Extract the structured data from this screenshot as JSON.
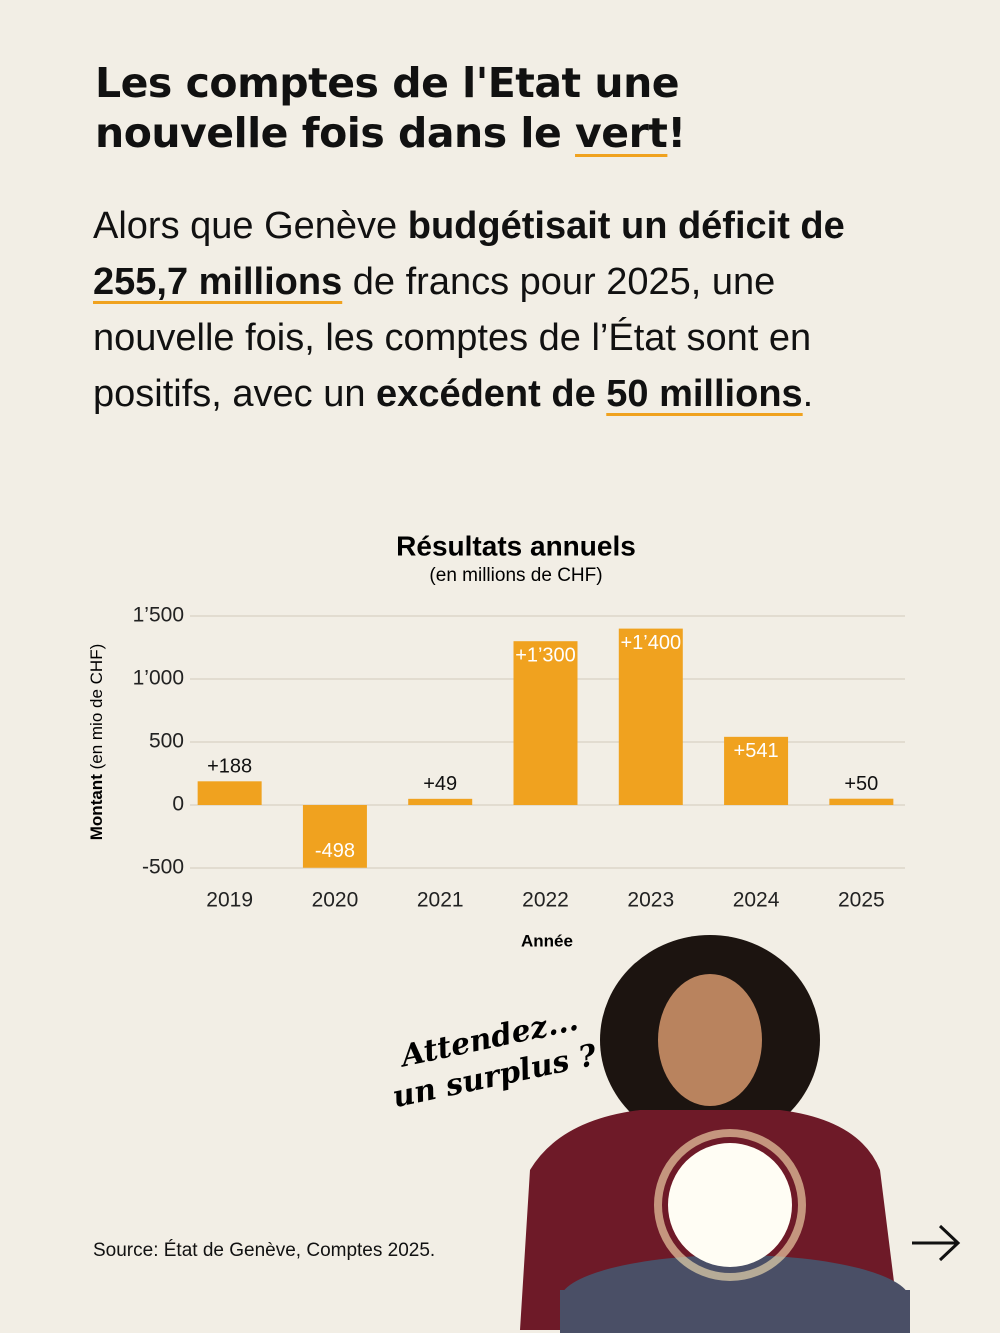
{
  "header": {
    "title": [
      "Les comptes de l'Etat une nouvelle fois dans le ",
      "vert",
      "!"
    ],
    "paragraph": [
      "Alors que Genève ",
      "budgétisait un déficit de ",
      "255,7 millions",
      " de francs pour 2025, une nouvelle fois, les comptes de l’État sont en positifs, avec un ",
      "excédent de ",
      "50 millions",
      "."
    ]
  },
  "chart_data": {
    "type": "bar",
    "title": "Résultats annuels",
    "subtitle": "(en millions de CHF)",
    "ylabel": [
      "Montant",
      "(en mio de CHF)"
    ],
    "xlabel": "Année",
    "categories": [
      "2019",
      "2020",
      "2021",
      "2022",
      "2023",
      "2024",
      "2025"
    ],
    "values": [
      188,
      -498,
      49,
      1300,
      1400,
      541,
      50
    ],
    "value_labels": [
      "+188",
      "-498",
      "+49",
      "+1’300",
      "+1’400",
      "+541",
      "+50"
    ],
    "color": "#f0a21f",
    "ylim": [
      -500,
      1500
    ],
    "yticks": [
      -500,
      0,
      500,
      {
        "value": 1000,
        "label": "1’000"
      },
      {
        "value": 1500,
        "label": "1’500"
      }
    ],
    "grid": true
  },
  "annotation": [
    "Attendez...",
    "un surplus ?"
  ],
  "source": "Source: État de Genève, Comptes 2025."
}
